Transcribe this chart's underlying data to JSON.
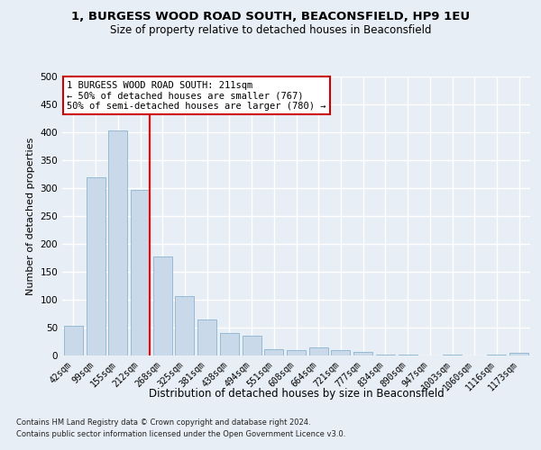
{
  "title1": "1, BURGESS WOOD ROAD SOUTH, BEACONSFIELD, HP9 1EU",
  "title2": "Size of property relative to detached houses in Beaconsfield",
  "xlabel": "Distribution of detached houses by size in Beaconsfield",
  "ylabel": "Number of detached properties",
  "categories": [
    "42sqm",
    "99sqm",
    "155sqm",
    "212sqm",
    "268sqm",
    "325sqm",
    "381sqm",
    "438sqm",
    "494sqm",
    "551sqm",
    "608sqm",
    "664sqm",
    "721sqm",
    "777sqm",
    "834sqm",
    "890sqm",
    "947sqm",
    "1003sqm",
    "1060sqm",
    "1116sqm",
    "1173sqm"
  ],
  "values": [
    53,
    320,
    403,
    297,
    177,
    107,
    65,
    40,
    36,
    11,
    10,
    15,
    9,
    6,
    2,
    1,
    0,
    1,
    0,
    1,
    5
  ],
  "bar_color": "#c9d9ea",
  "bar_edge_color": "#7aaac8",
  "red_line_index": 3,
  "annotation_line1": "1 BURGESS WOOD ROAD SOUTH: 211sqm",
  "annotation_line2": "← 50% of detached houses are smaller (767)",
  "annotation_line3": "50% of semi-detached houses are larger (780) →",
  "annotation_box_color": "#ffffff",
  "annotation_edge_color": "#cc0000",
  "footnote1": "Contains HM Land Registry data © Crown copyright and database right 2024.",
  "footnote2": "Contains public sector information licensed under the Open Government Licence v3.0.",
  "ylim": [
    0,
    500
  ],
  "yticks": [
    0,
    50,
    100,
    150,
    200,
    250,
    300,
    350,
    400,
    450,
    500
  ],
  "bg_color": "#e8eef5",
  "plot_bg_color": "#e8eef5",
  "grid_color": "#ffffff",
  "title1_fontsize": 9.5,
  "title2_fontsize": 8.5,
  "xlabel_fontsize": 8.5,
  "ylabel_fontsize": 8,
  "tick_fontsize": 7,
  "footnote_fontsize": 6,
  "annotation_fontsize": 7.5
}
